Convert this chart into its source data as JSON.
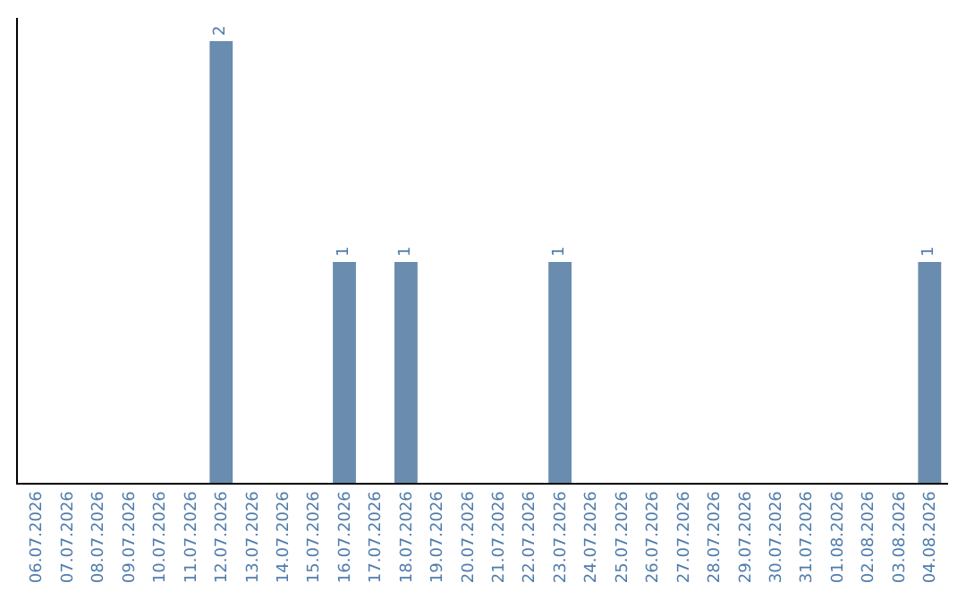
{
  "chart_data": {
    "type": "bar",
    "categories": [
      "06.07.2026",
      "07.07.2026",
      "08.07.2026",
      "09.07.2026",
      "10.07.2026",
      "11.07.2026",
      "12.07.2026",
      "13.07.2026",
      "14.07.2026",
      "15.07.2026",
      "16.07.2026",
      "17.07.2026",
      "18.07.2026",
      "19.07.2026",
      "20.07.2026",
      "21.07.2026",
      "22.07.2026",
      "23.07.2026",
      "24.07.2026",
      "25.07.2026",
      "26.07.2026",
      "27.07.2026",
      "28.07.2026",
      "29.07.2026",
      "30.07.2026",
      "31.07.2026",
      "01.08.2026",
      "02.08.2026",
      "03.08.2026",
      "04.08.2026"
    ],
    "values": [
      0,
      0,
      0,
      0,
      0,
      0,
      2,
      0,
      0,
      0,
      1,
      0,
      1,
      0,
      0,
      0,
      0,
      1,
      0,
      0,
      0,
      0,
      0,
      0,
      0,
      0,
      0,
      0,
      0,
      1
    ],
    "value_labels": [
      null,
      null,
      null,
      null,
      null,
      null,
      "2",
      null,
      null,
      null,
      "1",
      null,
      "1",
      null,
      null,
      null,
      null,
      "1",
      null,
      null,
      null,
      null,
      null,
      null,
      null,
      null,
      null,
      null,
      null,
      "1"
    ],
    "color": "#6a8cae",
    "legend": false
  }
}
